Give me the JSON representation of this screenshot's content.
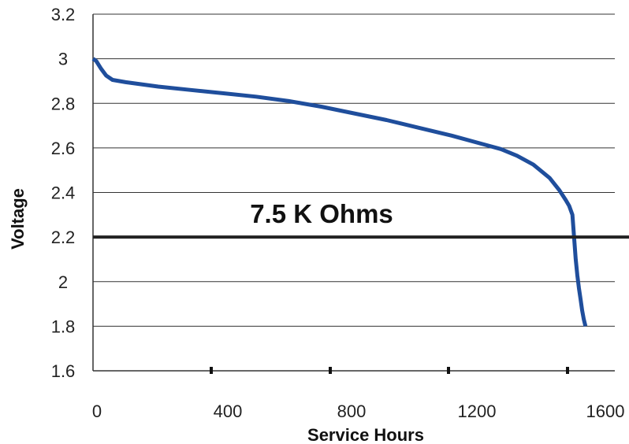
{
  "chart_data": {
    "type": "line",
    "title": "",
    "xlabel": "Service Hours",
    "ylabel": "Voltage",
    "xlim": [
      0,
      1600
    ],
    "ylim": [
      1.6,
      3.2
    ],
    "x_ticks": [
      0,
      400,
      800,
      1200,
      1600
    ],
    "x_tick_labels": [
      "0",
      "400",
      "800",
      "1200",
      "1600"
    ],
    "x_minor_ticks": [
      400,
      800,
      1200,
      1600
    ],
    "y_ticks": [
      1.6,
      1.8,
      2,
      2.2,
      2.4,
      2.6,
      2.8,
      3,
      3.2
    ],
    "y_tick_labels": [
      "1.6",
      "1.8",
      "2",
      "2.2",
      "2.4",
      "2.6",
      "2.8",
      "3",
      "3.2"
    ],
    "grid": "horizontal",
    "series": [
      {
        "color": "#1f4e9c",
        "x": [
          0,
          10,
          25,
          40,
          60,
          100,
          200,
          300,
          400,
          500,
          600,
          700,
          800,
          900,
          1000,
          1100,
          1200,
          1250,
          1300,
          1350,
          1400,
          1430,
          1450,
          1460,
          1470,
          1475,
          1480,
          1485,
          1490,
          1495,
          1500,
          1505,
          1510
        ],
        "y": [
          3.0,
          2.99,
          2.955,
          2.925,
          2.905,
          2.895,
          2.875,
          2.86,
          2.845,
          2.83,
          2.81,
          2.785,
          2.755,
          2.725,
          2.69,
          2.655,
          2.615,
          2.595,
          2.565,
          2.525,
          2.465,
          2.41,
          2.365,
          2.34,
          2.3,
          2.2,
          2.1,
          2.03,
          1.97,
          1.92,
          1.87,
          1.83,
          1.8
        ]
      }
    ],
    "reference_lines": [
      {
        "y": 2.2,
        "label": "7.5 K Ohms",
        "color": "#222222"
      }
    ]
  }
}
